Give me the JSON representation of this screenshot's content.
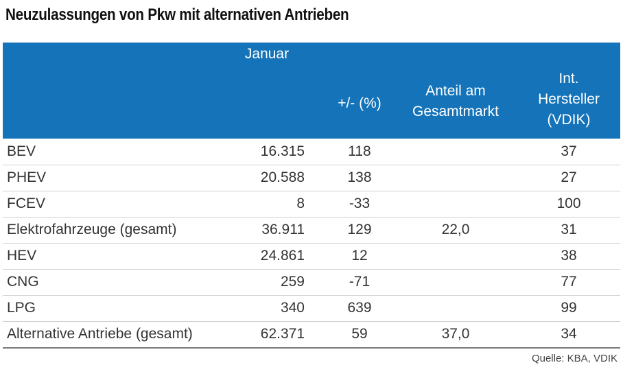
{
  "title": "Neuzulassungen von Pkw mit alternativen Antrieben",
  "header": {
    "col1": "Januar",
    "col2": "+/- (%)",
    "col3_line1": "Anteil am",
    "col3_line2": "Gesamtmarkt",
    "col4_line1": "Int.",
    "col4_line2": "Hersteller",
    "col4_line3": "(VDIK)"
  },
  "rows": [
    {
      "label": "BEV",
      "januar": "16.315",
      "change": "118",
      "anteil": "",
      "vdik": "37"
    },
    {
      "label": "PHEV",
      "januar": "20.588",
      "change": "138",
      "anteil": "",
      "vdik": "27"
    },
    {
      "label": "FCEV",
      "januar": "8",
      "change": "-33",
      "anteil": "",
      "vdik": "100"
    },
    {
      "label": "Elektrofahrzeuge (gesamt)",
      "januar": "36.911",
      "change": "129",
      "anteil": "22,0",
      "vdik": "31"
    },
    {
      "label": "HEV",
      "januar": "24.861",
      "change": "12",
      "anteil": "",
      "vdik": "38"
    },
    {
      "label": "CNG",
      "januar": "259",
      "change": "-71",
      "anteil": "",
      "vdik": "77"
    },
    {
      "label": "LPG",
      "januar": "340",
      "change": "639",
      "anteil": "",
      "vdik": "99"
    },
    {
      "label": "Alternative Antriebe (gesamt)",
      "januar": "62.371",
      "change": "59",
      "anteil": "37,0",
      "vdik": "34"
    }
  ],
  "source": "Quelle: KBA, VDIK",
  "colors": {
    "header_bg": "#1473b9",
    "header_text": "#ffffff",
    "body_text": "#333333"
  },
  "chart_data": {
    "type": "table",
    "title": "Neuzulassungen von Pkw mit alternativen Antrieben",
    "columns": [
      "",
      "Januar",
      "+/- (%)",
      "Anteil am Gesamtmarkt",
      "Int. Hersteller (VDIK)"
    ],
    "rows": [
      [
        "BEV",
        16315,
        118,
        null,
        37
      ],
      [
        "PHEV",
        20588,
        138,
        null,
        27
      ],
      [
        "FCEV",
        8,
        -33,
        null,
        100
      ],
      [
        "Elektrofahrzeuge (gesamt)",
        36911,
        129,
        22.0,
        31
      ],
      [
        "HEV",
        24861,
        12,
        null,
        38
      ],
      [
        "CNG",
        259,
        -71,
        null,
        77
      ],
      [
        "LPG",
        340,
        639,
        null,
        99
      ],
      [
        "Alternative Antriebe (gesamt)",
        62371,
        59,
        37.0,
        34
      ]
    ]
  }
}
